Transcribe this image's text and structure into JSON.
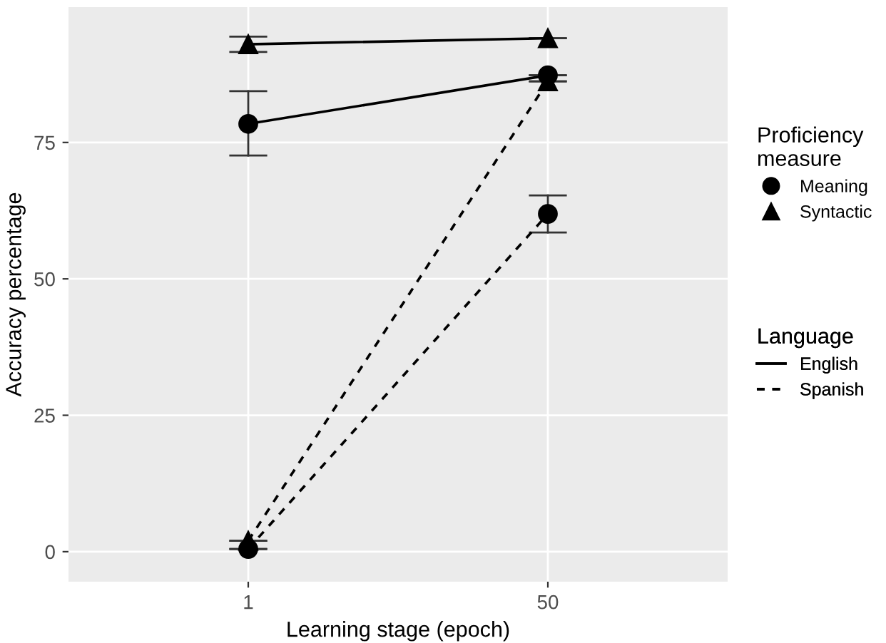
{
  "chart_data": {
    "type": "line",
    "xlabel": "Learning stage (epoch)",
    "ylabel": "Accuracy percentage",
    "legend_title": [
      "Proficiency\nmeasure",
      "Language"
    ],
    "categories": [
      "1",
      "50"
    ],
    "series": [
      {
        "color": "#000000",
        "marker": "triangle",
        "line_style": "solid",
        "values": [
          93.0,
          94.1
        ],
        "errors": [
          [
            91.6,
            94.4
          ],
          [
            94.1,
            94.1
          ]
        ]
      },
      {
        "color": "#000000",
        "marker": "circle",
        "line_style": "solid",
        "values": [
          78.4,
          87.3
        ],
        "errors": [
          [
            72.6,
            84.4
          ],
          [
            87.3,
            87.3
          ]
        ]
      },
      {
        "color": "#000000",
        "marker": "circle",
        "line_style": "dashed",
        "values": [
          0.5,
          61.9
        ],
        "errors": [
          [
            0.5,
            0.5
          ],
          [
            58.5,
            65.3
          ]
        ]
      },
      {
        "color": "#000000",
        "marker": "triangle",
        "line_style": "dashed",
        "values": [
          2.0,
          86.2
        ],
        "errors": [
          [
            2.0,
            2.0
          ],
          [
            86.2,
            86.2
          ]
        ]
      },
      {
        "name": "Meaning",
        "color": "#000000",
        "marker": "circle",
        "line_style": "none",
        "values": [
          null,
          null
        ]
      },
      {
        "name": "Syntactic",
        "color": "#000000",
        "marker": "triangle",
        "line_style": "none",
        "values": [
          null,
          null
        ]
      },
      {
        "name": "English",
        "color": "#000000",
        "marker": "none",
        "line_style": "solid",
        "values": [
          null,
          null
        ]
      },
      {
        "name": "Spanish",
        "color": "#000000",
        "marker": "none",
        "line_style": "dashed",
        "values": [
          null,
          null
        ]
      }
    ],
    "ylim": [
      -5.5,
      99.8
    ],
    "yticks": [
      0,
      25,
      50,
      75
    ],
    "grid": true,
    "legend": "right"
  }
}
